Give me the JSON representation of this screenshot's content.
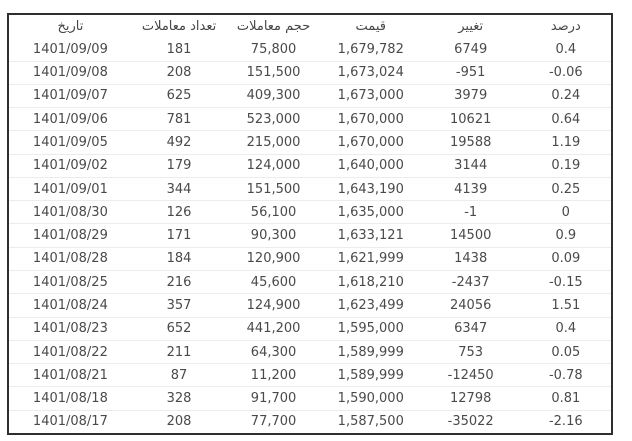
{
  "page": {
    "background_color": "#ffffff",
    "border_color": "#2f2f2f",
    "text_color": "#4a4a4a",
    "separator_color": "#ececec"
  },
  "table": {
    "columns": [
      {
        "key": "date",
        "label": "تاریخ"
      },
      {
        "key": "trades-count",
        "label": "تعداد معاملات"
      },
      {
        "key": "volume",
        "label": "حجم معاملات"
      },
      {
        "key": "price",
        "label": "قیمت"
      },
      {
        "key": "change",
        "label": "تغییر"
      },
      {
        "key": "percent",
        "label": "درصد"
      }
    ],
    "rows": [
      [
        "1401/09/09",
        "181",
        "75,800",
        "1,679,782",
        "6749",
        "0.4"
      ],
      [
        "1401/09/08",
        "208",
        "151,500",
        "1,673,024",
        "-951",
        "-0.06"
      ],
      [
        "1401/09/07",
        "625",
        "409,300",
        "1,673,000",
        "3979",
        "0.24"
      ],
      [
        "1401/09/06",
        "781",
        "523,000",
        "1,670,000",
        "10621",
        "0.64"
      ],
      [
        "1401/09/05",
        "492",
        "215,000",
        "1,670,000",
        "19588",
        "1.19"
      ],
      [
        "1401/09/02",
        "179",
        "124,000",
        "1,640,000",
        "3144",
        "0.19"
      ],
      [
        "1401/09/01",
        "344",
        "151,500",
        "1,643,190",
        "4139",
        "0.25"
      ],
      [
        "1401/08/30",
        "126",
        "56,100",
        "1,635,000",
        "-1",
        "0"
      ],
      [
        "1401/08/29",
        "171",
        "90,300",
        "1,633,121",
        "14500",
        "0.9"
      ],
      [
        "1401/08/28",
        "184",
        "120,900",
        "1,621,999",
        "1438",
        "0.09"
      ],
      [
        "1401/08/25",
        "216",
        "45,600",
        "1,618,210",
        "-2437",
        "-0.15"
      ],
      [
        "1401/08/24",
        "357",
        "124,900",
        "1,623,499",
        "24056",
        "1.51"
      ],
      [
        "1401/08/23",
        "652",
        "441,200",
        "1,595,000",
        "6347",
        "0.4"
      ],
      [
        "1401/08/22",
        "211",
        "64,300",
        "1,589,999",
        "753",
        "0.05"
      ],
      [
        "1401/08/21",
        "87",
        "11,200",
        "1,589,999",
        "-12450",
        "-0.78"
      ],
      [
        "1401/08/18",
        "328",
        "91,700",
        "1,590,000",
        "12798",
        "0.81"
      ],
      [
        "1401/08/17",
        "208",
        "77,700",
        "1,587,500",
        "-35022",
        "-2.16"
      ]
    ]
  },
  "chart_data": {
    "type": "table",
    "title": "",
    "columns": [
      "تاریخ",
      "تعداد معاملات",
      "حجم معاملات",
      "قیمت",
      "تغییر",
      "درصد"
    ],
    "rows": [
      [
        "1401/09/09",
        181,
        75800,
        1679782,
        6749,
        0.4
      ],
      [
        "1401/09/08",
        208,
        151500,
        1673024,
        -951,
        -0.06
      ],
      [
        "1401/09/07",
        625,
        409300,
        1673000,
        3979,
        0.24
      ],
      [
        "1401/09/06",
        781,
        523000,
        1670000,
        10621,
        0.64
      ],
      [
        "1401/09/05",
        492,
        215000,
        1670000,
        19588,
        1.19
      ],
      [
        "1401/09/02",
        179,
        124000,
        1640000,
        3144,
        0.19
      ],
      [
        "1401/09/01",
        344,
        151500,
        1643190,
        4139,
        0.25
      ],
      [
        "1401/08/30",
        126,
        56100,
        1635000,
        -1,
        0
      ],
      [
        "1401/08/29",
        171,
        90300,
        1633121,
        14500,
        0.9
      ],
      [
        "1401/08/28",
        184,
        120900,
        1621999,
        1438,
        0.09
      ],
      [
        "1401/08/25",
        216,
        45600,
        1618210,
        -2437,
        -0.15
      ],
      [
        "1401/08/24",
        357,
        124900,
        1623499,
        24056,
        1.51
      ],
      [
        "1401/08/23",
        652,
        441200,
        1595000,
        6347,
        0.4
      ],
      [
        "1401/08/22",
        211,
        64300,
        1589999,
        753,
        0.05
      ],
      [
        "1401/08/21",
        87,
        11200,
        1589999,
        -12450,
        -0.78
      ],
      [
        "1401/08/18",
        328,
        91700,
        1590000,
        12798,
        0.81
      ],
      [
        "1401/08/17",
        208,
        77700,
        1587500,
        -35022,
        -2.16
      ]
    ]
  }
}
